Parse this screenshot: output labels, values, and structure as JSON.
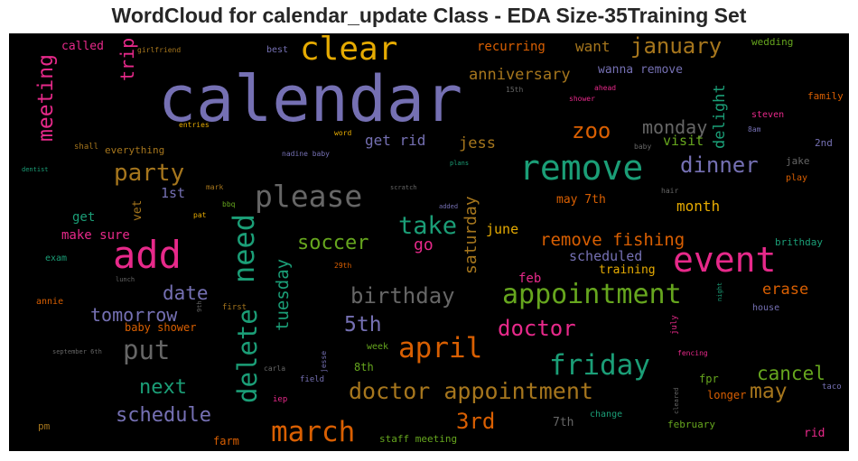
{
  "chart_data": {
    "type": "wordcloud",
    "title": "WordCloud for calendar_update Class - EDA Size-35Training Set",
    "background": "#000000",
    "colormap": [
      "#7570b3",
      "#e7298a",
      "#1b9e77",
      "#d95f02",
      "#e6ab02",
      "#66a61e",
      "#a6761d",
      "#666666"
    ],
    "words": [
      {
        "text": "calendar",
        "weight": 1.0,
        "color": "#7570b3"
      },
      {
        "text": "add",
        "weight": 0.62,
        "color": "#e7298a"
      },
      {
        "text": "remove",
        "weight": 0.58,
        "color": "#1b9e77"
      },
      {
        "text": "event",
        "weight": 0.55,
        "color": "#e7298a"
      },
      {
        "text": "clear",
        "weight": 0.5,
        "color": "#e6ab02"
      },
      {
        "text": "please",
        "weight": 0.48,
        "color": "#666666"
      },
      {
        "text": "need",
        "weight": 0.46,
        "color": "#1b9e77"
      },
      {
        "text": "appointment",
        "weight": 0.45,
        "color": "#66a61e"
      },
      {
        "text": "march",
        "weight": 0.44,
        "color": "#d95f02"
      },
      {
        "text": "friday",
        "weight": 0.43,
        "color": "#1b9e77"
      },
      {
        "text": "april",
        "weight": 0.43,
        "color": "#d95f02"
      },
      {
        "text": "delete",
        "weight": 0.42,
        "color": "#1b9e77"
      },
      {
        "text": "put",
        "weight": 0.41,
        "color": "#666666"
      },
      {
        "text": "doctor appointment",
        "weight": 0.4,
        "color": "#a6761d"
      },
      {
        "text": "take",
        "weight": 0.37,
        "color": "#1b9e77"
      },
      {
        "text": "party",
        "weight": 0.36,
        "color": "#a6761d"
      },
      {
        "text": "meeting",
        "weight": 0.34,
        "color": "#e7298a"
      },
      {
        "text": "dinner",
        "weight": 0.34,
        "color": "#7570b3"
      },
      {
        "text": "january",
        "weight": 0.33,
        "color": "#a6761d"
      },
      {
        "text": "birthday",
        "weight": 0.33,
        "color": "#666666"
      },
      {
        "text": "doctor",
        "weight": 0.33,
        "color": "#e7298a"
      },
      {
        "text": "3rd",
        "weight": 0.32,
        "color": "#d95f02"
      },
      {
        "text": "schedule",
        "weight": 0.31,
        "color": "#7570b3"
      },
      {
        "text": "soccer",
        "weight": 0.31,
        "color": "#66a61e"
      },
      {
        "text": "zoo",
        "weight": 0.31,
        "color": "#d95f02"
      },
      {
        "text": "date",
        "weight": 0.3,
        "color": "#7570b3"
      },
      {
        "text": "5th",
        "weight": 0.3,
        "color": "#7570b3"
      },
      {
        "text": "next",
        "weight": 0.3,
        "color": "#1b9e77"
      },
      {
        "text": "may",
        "weight": 0.3,
        "color": "#a6761d"
      },
      {
        "text": "tuesday",
        "weight": 0.29,
        "color": "#1b9e77"
      },
      {
        "text": "cancel",
        "weight": 0.28,
        "color": "#66a61e"
      },
      {
        "text": "tomorrow",
        "weight": 0.27,
        "color": "#7570b3"
      },
      {
        "text": "monday",
        "weight": 0.27,
        "color": "#666666"
      },
      {
        "text": "remove fishing",
        "weight": 0.26,
        "color": "#d95f02"
      },
      {
        "text": "trip",
        "weight": 0.26,
        "color": "#e7298a"
      },
      {
        "text": "saturday",
        "weight": 0.25,
        "color": "#a6761d"
      },
      {
        "text": "delight",
        "weight": 0.23,
        "color": "#1b9e77"
      },
      {
        "text": "anniversary",
        "weight": 0.23,
        "color": "#a6761d"
      },
      {
        "text": "jess",
        "weight": 0.22,
        "color": "#a6761d"
      },
      {
        "text": "get rid",
        "weight": 0.22,
        "color": "#7570b3"
      },
      {
        "text": "go",
        "weight": 0.22,
        "color": "#e7298a"
      },
      {
        "text": "erase",
        "weight": 0.22,
        "color": "#d95f02"
      },
      {
        "text": "want",
        "weight": 0.21,
        "color": "#a6761d"
      },
      {
        "text": "visit",
        "weight": 0.21,
        "color": "#66a61e"
      },
      {
        "text": "month",
        "weight": 0.21,
        "color": "#e6ab02"
      },
      {
        "text": "june",
        "weight": 0.21,
        "color": "#e6ab02"
      },
      {
        "text": "1st",
        "weight": 0.2,
        "color": "#7570b3"
      },
      {
        "text": "scheduled",
        "weight": 0.2,
        "color": "#7570b3"
      },
      {
        "text": "recurring",
        "weight": 0.2,
        "color": "#d95f02"
      },
      {
        "text": "feb",
        "weight": 0.19,
        "color": "#e7298a"
      },
      {
        "text": "get",
        "weight": 0.19,
        "color": "#1b9e77"
      },
      {
        "text": "make sure",
        "weight": 0.19,
        "color": "#e7298a"
      },
      {
        "text": "training",
        "weight": 0.18,
        "color": "#e6ab02"
      },
      {
        "text": "wanna remove",
        "weight": 0.17,
        "color": "#7570b3"
      },
      {
        "text": "may 7th",
        "weight": 0.17,
        "color": "#d95f02"
      },
      {
        "text": "called",
        "weight": 0.17,
        "color": "#e7298a"
      },
      {
        "text": "7th",
        "weight": 0.17,
        "color": "#666666"
      },
      {
        "text": "vet",
        "weight": 0.16,
        "color": "#a6761d"
      },
      {
        "text": "8th",
        "weight": 0.16,
        "color": "#66a61e"
      },
      {
        "text": "fpr",
        "weight": 0.15,
        "color": "#66a61e"
      },
      {
        "text": "longer",
        "weight": 0.15,
        "color": "#d95f02"
      },
      {
        "text": "rid",
        "weight": 0.15,
        "color": "#e7298a"
      },
      {
        "text": "wedding",
        "weight": 0.13,
        "color": "#66a61e"
      },
      {
        "text": "everything",
        "weight": 0.13,
        "color": "#a6761d"
      },
      {
        "text": "baby shower",
        "weight": 0.13,
        "color": "#d95f02"
      },
      {
        "text": "staff meeting",
        "weight": 0.13,
        "color": "#66a61e"
      },
      {
        "text": "farm",
        "weight": 0.13,
        "color": "#d95f02"
      },
      {
        "text": "february",
        "weight": 0.13,
        "color": "#66a61e"
      },
      {
        "text": "family",
        "weight": 0.12,
        "color": "#d95f02"
      },
      {
        "text": "2nd",
        "weight": 0.12,
        "color": "#7570b3"
      },
      {
        "text": "jake",
        "weight": 0.12,
        "color": "#666666"
      },
      {
        "text": "brithday",
        "weight": 0.12,
        "color": "#1b9e77"
      },
      {
        "text": "house",
        "weight": 0.12,
        "color": "#7570b3"
      },
      {
        "text": "week",
        "weight": 0.12,
        "color": "#66a61e"
      },
      {
        "text": "change",
        "weight": 0.12,
        "color": "#1b9e77"
      },
      {
        "text": "pm",
        "weight": 0.12,
        "color": "#a6761d"
      },
      {
        "text": "annie",
        "weight": 0.11,
        "color": "#d95f02"
      },
      {
        "text": "exam",
        "weight": 0.11,
        "color": "#1b9e77"
      },
      {
        "text": "best",
        "weight": 0.11,
        "color": "#7570b3"
      },
      {
        "text": "steven",
        "weight": 0.11,
        "color": "#e7298a"
      },
      {
        "text": "play",
        "weight": 0.11,
        "color": "#d95f02"
      },
      {
        "text": "taco",
        "weight": 0.1,
        "color": "#7570b3"
      },
      {
        "text": "first",
        "weight": 0.1,
        "color": "#a6761d"
      },
      {
        "text": "jesse",
        "weight": 0.1,
        "color": "#7570b3"
      },
      {
        "text": "field",
        "weight": 0.1,
        "color": "#7570b3"
      },
      {
        "text": "iep",
        "weight": 0.1,
        "color": "#e7298a"
      },
      {
        "text": "shall",
        "weight": 0.1,
        "color": "#a6761d"
      },
      {
        "text": "entries",
        "weight": 0.1,
        "color": "#e6ab02"
      },
      {
        "text": "word",
        "weight": 0.1,
        "color": "#e6ab02"
      },
      {
        "text": "mark",
        "weight": 0.1,
        "color": "#a6761d"
      },
      {
        "text": "bbq",
        "weight": 0.1,
        "color": "#66a61e"
      },
      {
        "text": "pat",
        "weight": 0.1,
        "color": "#e6ab02"
      },
      {
        "text": "29th",
        "weight": 0.1,
        "color": "#d95f02"
      },
      {
        "text": "fencing",
        "weight": 0.1,
        "color": "#e7298a"
      },
      {
        "text": "july",
        "weight": 0.1,
        "color": "#e7298a"
      },
      {
        "text": "carla",
        "weight": 0.09,
        "color": "#666666"
      },
      {
        "text": "cleared",
        "weight": 0.09,
        "color": "#666666"
      },
      {
        "text": "hair",
        "weight": 0.09,
        "color": "#666666"
      },
      {
        "text": "baby",
        "weight": 0.09,
        "color": "#666666"
      },
      {
        "text": "8am",
        "weight": 0.09,
        "color": "#7570b3"
      },
      {
        "text": "ahead",
        "weight": 0.09,
        "color": "#e7298a"
      },
      {
        "text": "shower",
        "weight": 0.09,
        "color": "#e7298a"
      },
      {
        "text": "15th",
        "weight": 0.09,
        "color": "#666666"
      },
      {
        "text": "girlfriend",
        "weight": 0.09,
        "color": "#a6761d"
      },
      {
        "text": "dentist",
        "weight": 0.09,
        "color": "#1b9e77"
      },
      {
        "text": "nadine baby",
        "weight": 0.09,
        "color": "#7570b3"
      },
      {
        "text": "plans",
        "weight": 0.09,
        "color": "#1b9e77"
      },
      {
        "text": "scratch",
        "weight": 0.09,
        "color": "#666666"
      },
      {
        "text": "added",
        "weight": 0.09,
        "color": "#7570b3"
      },
      {
        "text": "lunch",
        "weight": 0.09,
        "color": "#666666"
      },
      {
        "text": "9th",
        "weight": 0.09,
        "color": "#666666"
      },
      {
        "text": "night",
        "weight": 0.09,
        "color": "#1b9e77"
      },
      {
        "text": "september 6th",
        "weight": 0.09,
        "color": "#666666"
      }
    ]
  }
}
